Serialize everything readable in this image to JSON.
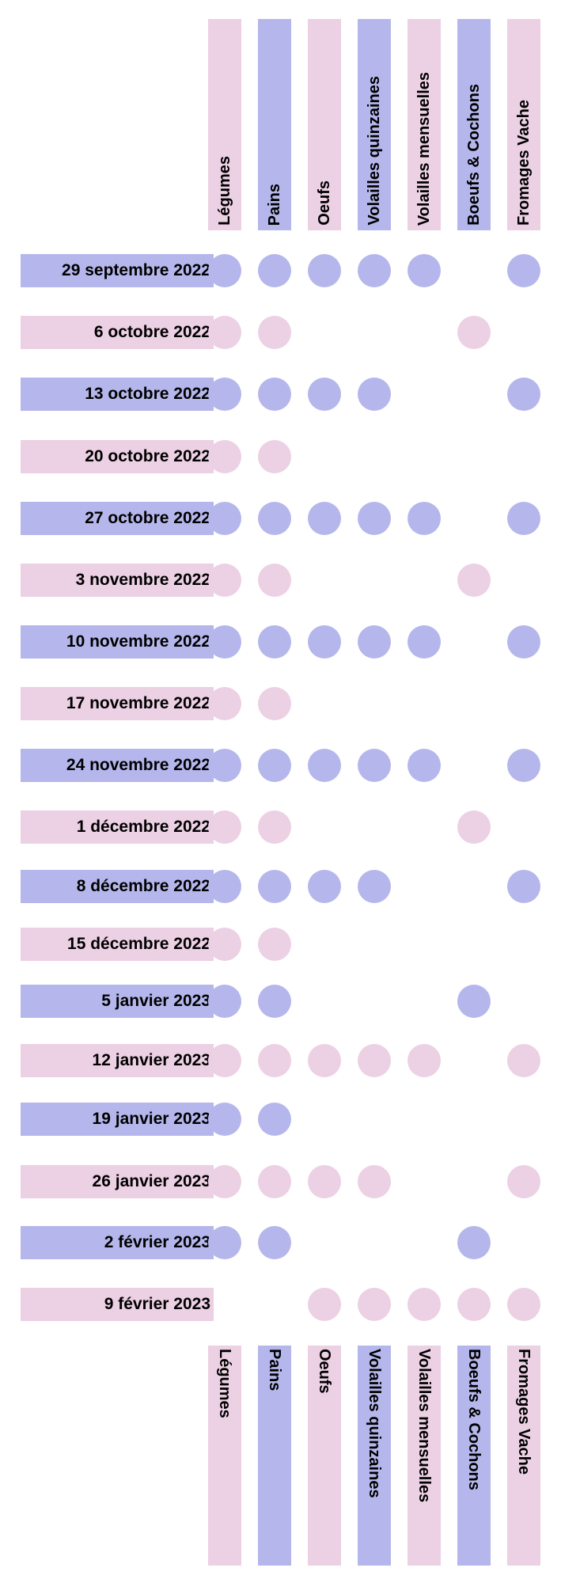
{
  "columns": [
    {
      "label": "Légumes"
    },
    {
      "label": "Pains"
    },
    {
      "label": "Oeufs"
    },
    {
      "label": "Volailles quinzaines"
    },
    {
      "label": "Volailles mensuelles"
    },
    {
      "label": "Boeufs & Cochons"
    },
    {
      "label": "Fromages Vache"
    }
  ],
  "colors": {
    "blue": "#b5b7ec",
    "pink": "#ecd0e4"
  },
  "rows": [
    {
      "date": "29 septembre 2022",
      "color": "blue",
      "marks": [
        1,
        1,
        1,
        1,
        1,
        0,
        1
      ]
    },
    {
      "date": "6 octobre 2022",
      "color": "pink",
      "marks": [
        1,
        1,
        0,
        0,
        0,
        1,
        0
      ]
    },
    {
      "date": "13 octobre 2022",
      "color": "blue",
      "marks": [
        1,
        1,
        1,
        1,
        0,
        0,
        1
      ]
    },
    {
      "date": "20 octobre 2022",
      "color": "pink",
      "marks": [
        1,
        1,
        0,
        0,
        0,
        0,
        0
      ]
    },
    {
      "date": "27 octobre 2022",
      "color": "blue",
      "marks": [
        1,
        1,
        1,
        1,
        1,
        0,
        1
      ]
    },
    {
      "date": "3 novembre 2022",
      "color": "pink",
      "marks": [
        1,
        1,
        0,
        0,
        0,
        1,
        0
      ]
    },
    {
      "date": "10 novembre 2022",
      "color": "blue",
      "marks": [
        1,
        1,
        1,
        1,
        1,
        0,
        1
      ]
    },
    {
      "date": "17 novembre 2022",
      "color": "pink",
      "marks": [
        1,
        1,
        0,
        0,
        0,
        0,
        0
      ]
    },
    {
      "date": "24 novembre 2022",
      "color": "blue",
      "marks": [
        1,
        1,
        1,
        1,
        1,
        0,
        1
      ]
    },
    {
      "date": "1 décembre 2022",
      "color": "pink",
      "marks": [
        1,
        1,
        0,
        0,
        0,
        1,
        0
      ]
    },
    {
      "date": "8 décembre 2022",
      "color": "blue",
      "marks": [
        1,
        1,
        1,
        1,
        0,
        0,
        1
      ]
    },
    {
      "date": "15 décembre 2022",
      "color": "pink",
      "marks": [
        1,
        1,
        0,
        0,
        0,
        0,
        0
      ]
    },
    {
      "date": "5 janvier 2023",
      "color": "blue",
      "marks": [
        1,
        1,
        0,
        0,
        0,
        1,
        0
      ]
    },
    {
      "date": "12 janvier 2023",
      "color": "pink",
      "marks": [
        1,
        1,
        1,
        1,
        1,
        0,
        1
      ]
    },
    {
      "date": "19 janvier 2023",
      "color": "blue",
      "marks": [
        1,
        1,
        0,
        0,
        0,
        0,
        0
      ]
    },
    {
      "date": "26 janvier 2023",
      "color": "pink",
      "marks": [
        1,
        1,
        1,
        1,
        0,
        0,
        1
      ]
    },
    {
      "date": "2 février 2023",
      "color": "blue",
      "marks": [
        1,
        1,
        0,
        0,
        0,
        1,
        0
      ]
    },
    {
      "date": "9 février 2023",
      "color": "pink",
      "marks": [
        0,
        0,
        1,
        1,
        1,
        1,
        1
      ]
    }
  ]
}
